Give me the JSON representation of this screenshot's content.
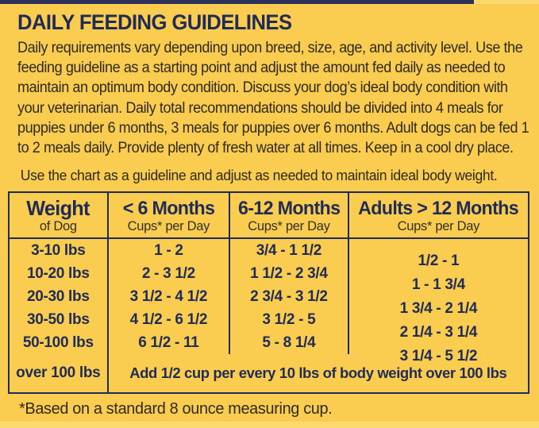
{
  "page": {
    "title": "DAILY FEEDING GUIDELINES",
    "intro_lines": [
      "Daily requirements vary depending upon breed, size, age, and activity level. Use the",
      "feeding guideline as a starting point and adjust the amount fed daily as needed to",
      "maintain an optimum body condition. Discuss your dog’s ideal body condition with",
      "your veterinarian. Daily total recommendations should be divided into 4 meals for",
      "puppies under 6 months, 3 meals for puppies over 6 months. Adult dogs can be fed 1",
      "to 2 meals daily. Provide plenty of fresh water at all times. Keep in a cool dry place."
    ],
    "chart_note": "Use the chart as a guideline and adjust as needed to maintain ideal body weight.",
    "footnote": "*Based on a standard 8 ounce measuring cup."
  },
  "table": {
    "columns": [
      {
        "label": "Weight",
        "sublabel": "of Dog"
      },
      {
        "label": "< 6 Months",
        "sublabel": "Cups* per Day"
      },
      {
        "label": "6-12 Months",
        "sublabel": "Cups* per Day"
      },
      {
        "label": "Adults > 12 Months",
        "sublabel": "Cups* per Day"
      }
    ],
    "rows": [
      {
        "weight": "3-10 lbs",
        "under6": "1 - 2",
        "m6to12": "3/4 - 1 1/2",
        "adults": "1/2 - 1"
      },
      {
        "weight": "10-20 lbs",
        "under6": "2 - 3 1/2",
        "m6to12": "1 1/2 - 2 3/4",
        "adults": "1 - 1 3/4"
      },
      {
        "weight": "20-30 lbs",
        "under6": "3 1/2 - 4 1/2",
        "m6to12": "2 3/4 - 3 1/2",
        "adults": "1 3/4 - 2 1/4"
      },
      {
        "weight": "30-50 lbs",
        "under6": "4 1/2 - 6 1/2",
        "m6to12": "3 1/2 - 5",
        "adults": "2 1/4 - 3 1/4"
      },
      {
        "weight": "50-100 lbs",
        "under6": "6 1/2 - 11",
        "m6to12": "5 - 8 1/4",
        "adults": "3 1/4 - 5 1/2"
      }
    ],
    "over100": {
      "weight": "over 100 lbs",
      "note": "Add 1/2 cup per every 10 lbs of body weight over 100 lbs"
    }
  },
  "colors": {
    "background_yellow": "#FACC4F",
    "pale_yellow_strip": "#FBD96E",
    "navy": "#212C56",
    "top_strip_navy": "#2B3158",
    "body_text": "#2E2A24"
  }
}
